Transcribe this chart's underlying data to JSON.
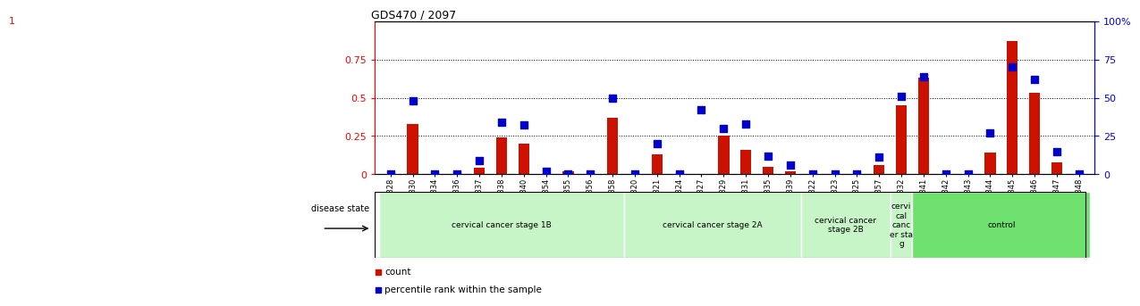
{
  "title": "GDS470 / 2097",
  "samples": [
    "GSM7828",
    "GSM7830",
    "GSM7834",
    "GSM7836",
    "GSM7837",
    "GSM7838",
    "GSM7840",
    "GSM7854",
    "GSM7855",
    "GSM7856",
    "GSM7858",
    "GSM7820",
    "GSM7821",
    "GSM7824",
    "GSM7827",
    "GSM7829",
    "GSM7831",
    "GSM7835",
    "GSM7839",
    "GSM7822",
    "GSM7823",
    "GSM7825",
    "GSM7857",
    "GSM7832",
    "GSM7841",
    "GSM7842",
    "GSM7843",
    "GSM7844",
    "GSM7845",
    "GSM7846",
    "GSM7847",
    "GSM7848"
  ],
  "count": [
    0.0,
    0.33,
    0.0,
    0.0,
    0.04,
    0.24,
    0.2,
    0.0,
    0.02,
    0.0,
    0.37,
    0.0,
    0.13,
    0.0,
    0.0,
    0.25,
    0.16,
    0.05,
    0.02,
    0.0,
    0.0,
    0.0,
    0.06,
    0.45,
    0.63,
    0.0,
    0.0,
    0.14,
    0.87,
    0.53,
    0.08,
    0.0
  ],
  "percentile": [
    0.0,
    48.0,
    0.0,
    0.0,
    9.0,
    34.0,
    32.0,
    2.0,
    0.0,
    0.0,
    50.0,
    0.0,
    20.0,
    0.0,
    42.0,
    30.0,
    33.0,
    12.0,
    6.0,
    0.0,
    0.0,
    0.0,
    11.0,
    51.0,
    64.0,
    0.0,
    0.0,
    27.0,
    70.0,
    62.0,
    15.0,
    0.0
  ],
  "groups": [
    {
      "label": "cervical cancer stage 1B",
      "start": 0,
      "end": 10,
      "color": "#c8f5c8"
    },
    {
      "label": "cervical cancer stage 2A",
      "start": 11,
      "end": 18,
      "color": "#c8f5c8"
    },
    {
      "label": "cervical cancer\nstage 2B",
      "start": 19,
      "end": 22,
      "color": "#c8f5c8"
    },
    {
      "label": "cervi\ncal\ncanc\ner sta\ng",
      "start": 23,
      "end": 23,
      "color": "#c8f5c8"
    },
    {
      "label": "control",
      "start": 24,
      "end": 31,
      "color": "#6ee06e"
    }
  ],
  "ylim_left": [
    0,
    1.0
  ],
  "ylim_right": [
    0,
    100
  ],
  "left_yticks": [
    0,
    0.25,
    0.5,
    0.75
  ],
  "right_yticks": [
    0,
    25,
    50,
    75,
    100
  ],
  "bar_color": "#cc1100",
  "dot_color": "#0000cc",
  "bar_width": 0.5,
  "dot_size": 28,
  "background_color": "#ffffff"
}
